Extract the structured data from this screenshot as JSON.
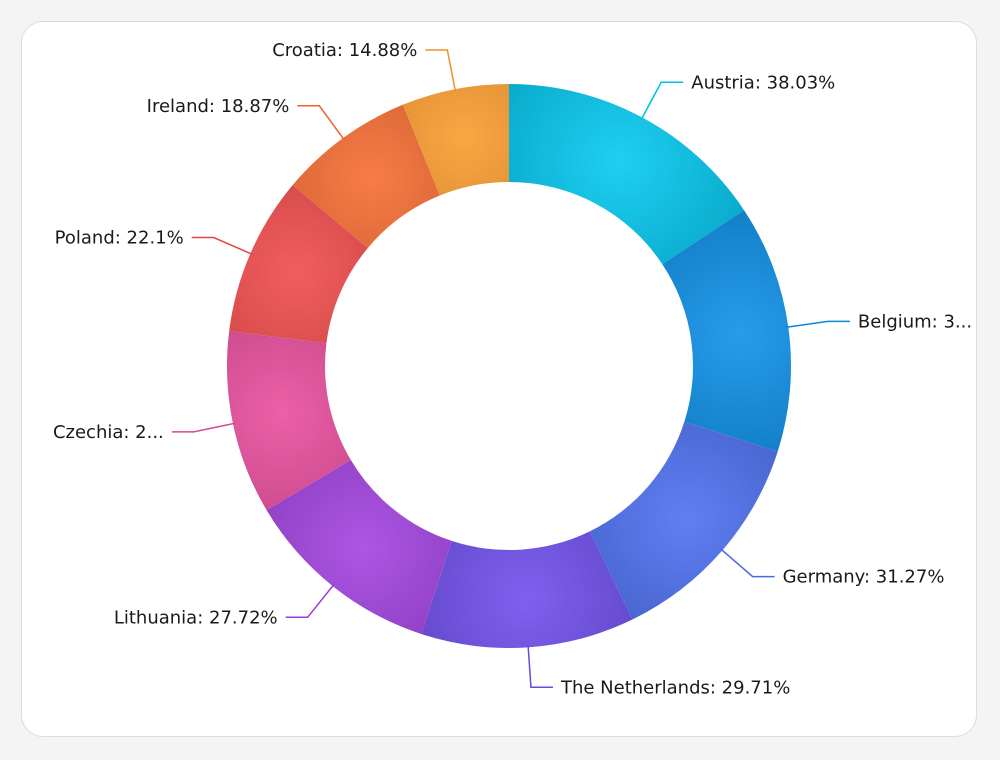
{
  "chart_data": {
    "type": "pie",
    "variant": "donut",
    "title": "",
    "legend": "none",
    "slices": [
      {
        "name": "Austria",
        "value": 38.03,
        "label": "Austria: 38.03%",
        "color": "#00c8f0"
      },
      {
        "name": "Belgium",
        "value": 34.5,
        "label": "Belgium: 3...",
        "color": "#0a8ee8"
      },
      {
        "name": "Germany",
        "value": 31.27,
        "label": "Germany: 31.27%",
        "color": "#4a6ef0"
      },
      {
        "name": "The Netherlands",
        "value": 29.71,
        "label": "The Netherlands: 29.71%",
        "color": "#6c4cec"
      },
      {
        "name": "Lithuania",
        "value": 27.72,
        "label": "Lithuania: 27.72%",
        "color": "#a13fe0"
      },
      {
        "name": "Czechia",
        "value": 25.5,
        "label": "Czechia: 2...",
        "color": "#e84a9c"
      },
      {
        "name": "Poland",
        "value": 22.1,
        "label": "Poland: 22.1%",
        "color": "#f04848"
      },
      {
        "name": "Ireland",
        "value": 18.87,
        "label": "Ireland: 18.87%",
        "color": "#f56a2e"
      },
      {
        "name": "Croatia",
        "value": 14.88,
        "label": "Croatia: 14.88%",
        "color": "#f99a2a"
      }
    ]
  }
}
